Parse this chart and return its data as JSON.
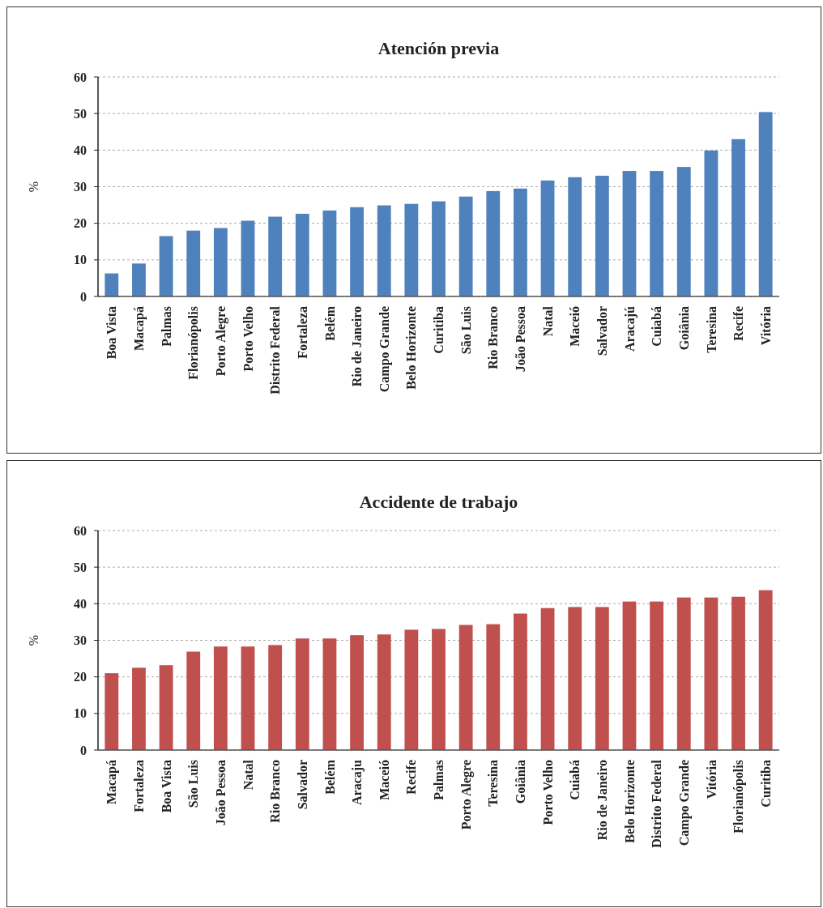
{
  "chart_data": [
    {
      "type": "bar",
      "title": "Atención  previa",
      "ylabel": "%",
      "categories": [
        "Boa Vista",
        "Macapá",
        "Palmas",
        "Florianópolis",
        "Porto Alegre",
        "Porto Velho",
        "Distrito Federal",
        "Fortaleza",
        "Belém",
        "Rio de Janeiro",
        "Campo Grande",
        "Belo Horizonte",
        "Curitiba",
        "São Luis",
        "Rio Branco",
        "João Pessoa",
        "Natal",
        "Maceió",
        "Salvador",
        "Aracajú",
        "Cuiabá",
        "Goiânia",
        "Teresina",
        "Recife",
        "Vitória"
      ],
      "values": [
        6.3,
        9.0,
        16.5,
        18.0,
        18.7,
        20.7,
        21.8,
        22.6,
        23.5,
        24.4,
        24.9,
        25.3,
        26.0,
        27.3,
        28.8,
        29.5,
        31.7,
        32.6,
        33.0,
        34.3,
        34.3,
        35.4,
        39.9,
        43.0,
        50.4
      ],
      "color": "#4f81bd",
      "ylim": [
        0,
        60
      ],
      "yticks": [
        0,
        10,
        20,
        30,
        40,
        50,
        60
      ],
      "grid": "y"
    },
    {
      "type": "bar",
      "title": "Accidente de trabajo",
      "ylabel": "%",
      "categories": [
        "Macapá",
        "Fortaleza",
        "Boa Vista",
        "São Luis",
        "João Pessoa",
        "Natal",
        "Rio Branco",
        "Salvador",
        "Belém",
        "Aracaju",
        "Maceió",
        "Recife",
        "Palmas",
        "Porto Alegre",
        "Teresina",
        "Goiânia",
        "Porto Velho",
        "Cuiabá",
        "Rio de Janeiro",
        "Belo Horizonte",
        "Distrito Federal",
        "Campo Grande",
        "Vitória",
        "Florianópolis",
        "Curitiba"
      ],
      "values": [
        21.0,
        22.5,
        23.2,
        26.9,
        28.3,
        28.3,
        28.7,
        30.5,
        30.5,
        31.4,
        31.6,
        32.9,
        33.1,
        34.2,
        34.4,
        37.3,
        38.8,
        39.1,
        39.1,
        40.6,
        40.6,
        41.7,
        41.7,
        41.9,
        43.7
      ],
      "color": "#c0504d",
      "ylim": [
        0,
        60
      ],
      "yticks": [
        0,
        10,
        20,
        30,
        40,
        50,
        60
      ],
      "grid": "y"
    }
  ]
}
